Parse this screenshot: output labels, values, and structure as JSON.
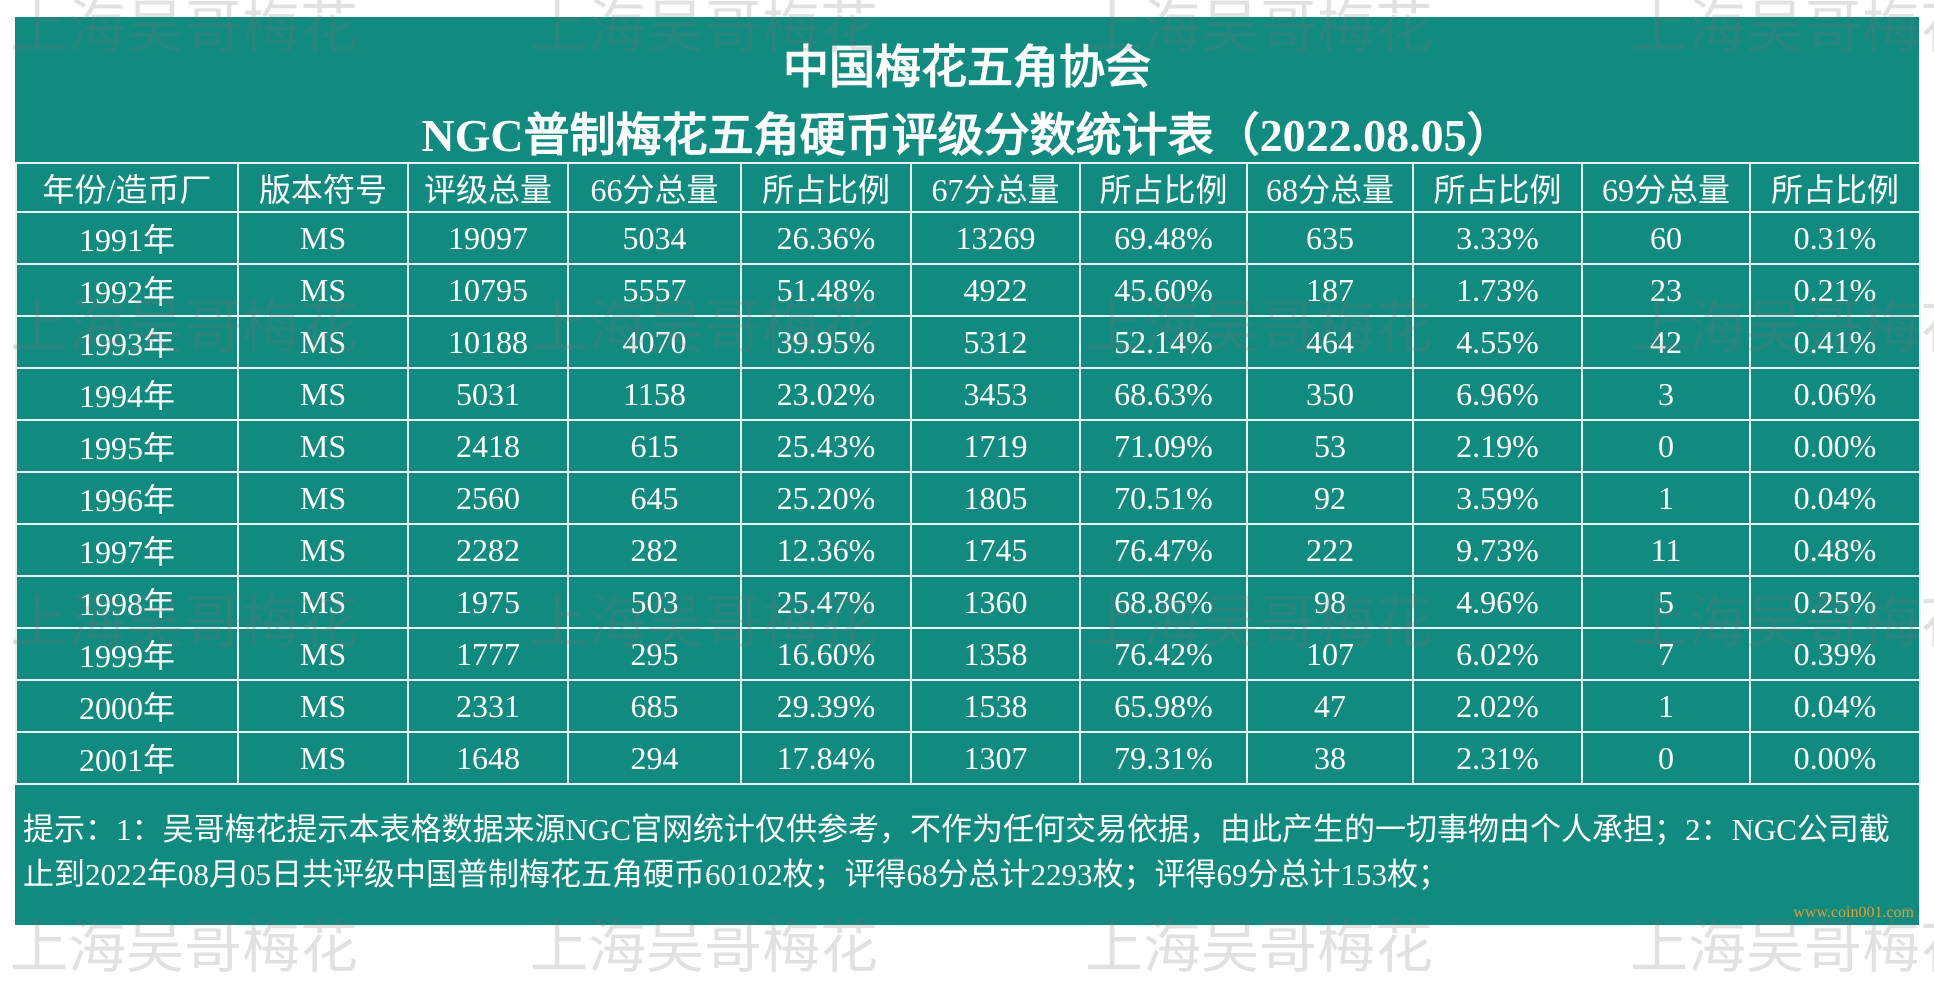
{
  "header": {
    "title": "中国梅花五角协会",
    "subtitle": "NGC普制梅花五角硬币评级分数统计表（2022.08.05）"
  },
  "table": {
    "columns": [
      "年份/造币厂",
      "版本符号",
      "评级总量",
      "66分总量",
      "所占比例",
      "67分总量",
      "所占比例",
      "68分总量",
      "所占比例",
      "69分总量",
      "所占比例"
    ],
    "rows": [
      [
        "1991年",
        "MS",
        "19097",
        "5034",
        "26.36%",
        "13269",
        "69.48%",
        "635",
        "3.33%",
        "60",
        "0.31%"
      ],
      [
        "1992年",
        "MS",
        "10795",
        "5557",
        "51.48%",
        "4922",
        "45.60%",
        "187",
        "1.73%",
        "23",
        "0.21%"
      ],
      [
        "1993年",
        "MS",
        "10188",
        "4070",
        "39.95%",
        "5312",
        "52.14%",
        "464",
        "4.55%",
        "42",
        "0.41%"
      ],
      [
        "1994年",
        "MS",
        "5031",
        "1158",
        "23.02%",
        "3453",
        "68.63%",
        "350",
        "6.96%",
        "3",
        "0.06%"
      ],
      [
        "1995年",
        "MS",
        "2418",
        "615",
        "25.43%",
        "1719",
        "71.09%",
        "53",
        "2.19%",
        "0",
        "0.00%"
      ],
      [
        "1996年",
        "MS",
        "2560",
        "645",
        "25.20%",
        "1805",
        "70.51%",
        "92",
        "3.59%",
        "1",
        "0.04%"
      ],
      [
        "1997年",
        "MS",
        "2282",
        "282",
        "12.36%",
        "1745",
        "76.47%",
        "222",
        "9.73%",
        "11",
        "0.48%"
      ],
      [
        "1998年",
        "MS",
        "1975",
        "503",
        "25.47%",
        "1360",
        "68.86%",
        "98",
        "4.96%",
        "5",
        "0.25%"
      ],
      [
        "1999年",
        "MS",
        "1777",
        "295",
        "16.60%",
        "1358",
        "76.42%",
        "107",
        "6.02%",
        "7",
        "0.39%"
      ],
      [
        "2000年",
        "MS",
        "2331",
        "685",
        "29.39%",
        "1538",
        "65.98%",
        "47",
        "2.02%",
        "1",
        "0.04%"
      ],
      [
        "2001年",
        "MS",
        "1648",
        "294",
        "17.84%",
        "1307",
        "79.31%",
        "38",
        "2.31%",
        "0",
        "0.00%"
      ]
    ]
  },
  "note": "提示：1：吴哥梅花提示本表格数据来源NGC官网统计仅供参考，不作为任何交易依据，由此产生的一切事物由个人承担；2：NGC公司截止到2022年08月05日共评级中国普制梅花五角硬币60102枚；评得68分总计2293枚；评得69分总计153枚；",
  "watermark": {
    "text": "上海吴哥梅花",
    "site": "www.coin001.com"
  }
}
